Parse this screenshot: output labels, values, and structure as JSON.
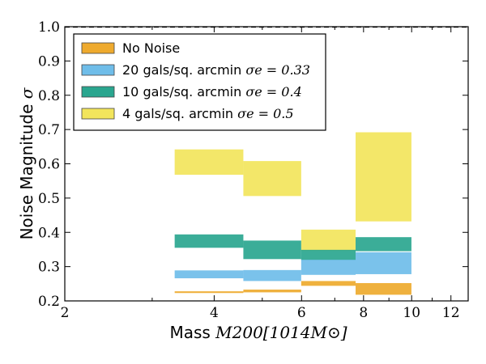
{
  "chart_data": {
    "type": "area",
    "xlabel": {
      "text": "Mass ",
      "math": "M200[1014M⊙]"
    },
    "ylabel": {
      "text": "Noise Magnitude ",
      "math": "σ"
    },
    "xscale": "log",
    "xlim": [
      2,
      13
    ],
    "ylim": [
      0.2,
      1.0
    ],
    "xticks": [
      2,
      4,
      6,
      8,
      10,
      12
    ],
    "yticks": [
      0.2,
      0.3,
      0.4,
      0.5,
      0.6,
      0.7,
      0.8,
      0.9,
      1.0
    ],
    "ytick_labels": [
      "0.2",
      "0.3",
      "0.4",
      "0.5",
      "0.6",
      "0.7",
      "0.8",
      "0.9",
      "1.0"
    ],
    "reference_line": {
      "y": 1.0,
      "style": "dashed"
    },
    "grid": false,
    "legend_position": "top-left",
    "bin_edges": [
      3.33,
      4.58,
      5.99,
      7.71,
      9.99
    ],
    "series": [
      {
        "name": "4 gals/sq. arcmin",
        "name_math": "σe = 0.5",
        "color": "#f2e55c",
        "low": [
          0.568,
          0.506,
          0.346,
          0.432
        ],
        "high": [
          0.642,
          0.608,
          0.408,
          0.692
        ]
      },
      {
        "name": "10 gals/sq. arcmin",
        "name_math": "σe = 0.4",
        "color": "#2aa68f",
        "low": [
          0.355,
          0.322,
          0.319,
          0.345
        ],
        "high": [
          0.394,
          0.376,
          0.349,
          0.386
        ]
      },
      {
        "name": "20 gals/sq. arcmin",
        "name_math": "σe = 0.33",
        "color": "#6fbde9",
        "low": [
          0.266,
          0.258,
          0.276,
          0.278
        ],
        "high": [
          0.289,
          0.29,
          0.32,
          0.342
        ]
      },
      {
        "name": "No Noise",
        "name_math": "",
        "color": "#eeaa2e",
        "low": [
          0.223,
          0.225,
          0.244,
          0.218
        ],
        "high": [
          0.228,
          0.233,
          0.258,
          0.252
        ]
      }
    ],
    "legend_order": [
      "No Noise",
      "20 gals/sq. arcmin",
      "10 gals/sq. arcmin",
      "4 gals/sq. arcmin"
    ]
  }
}
